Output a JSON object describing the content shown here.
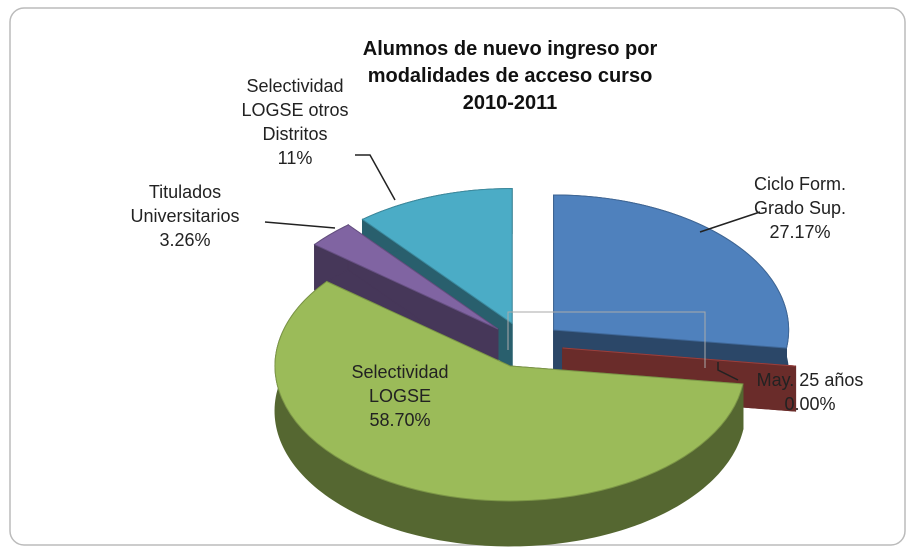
{
  "chart_data": {
    "type": "pie3d",
    "title": "Alumnos de nuevo ingreso por modalidades de acceso curso 2010-2011",
    "categories": [
      "Ciclo Form. Grado Sup.",
      "May. 25 años",
      "Selectividad LOGSE",
      "Titulados Universitarios",
      "Selectividad LOGSE otros Distritos"
    ],
    "values": [
      27.17,
      0.0,
      58.7,
      3.26,
      11
    ],
    "value_labels": [
      "27.17%",
      "0.00%",
      "58.70%",
      "3.26%",
      "11%"
    ],
    "colors": [
      "#4f81bd",
      "#c0504d",
      "#9bbb59",
      "#8064a2",
      "#4bacc6"
    ]
  }
}
